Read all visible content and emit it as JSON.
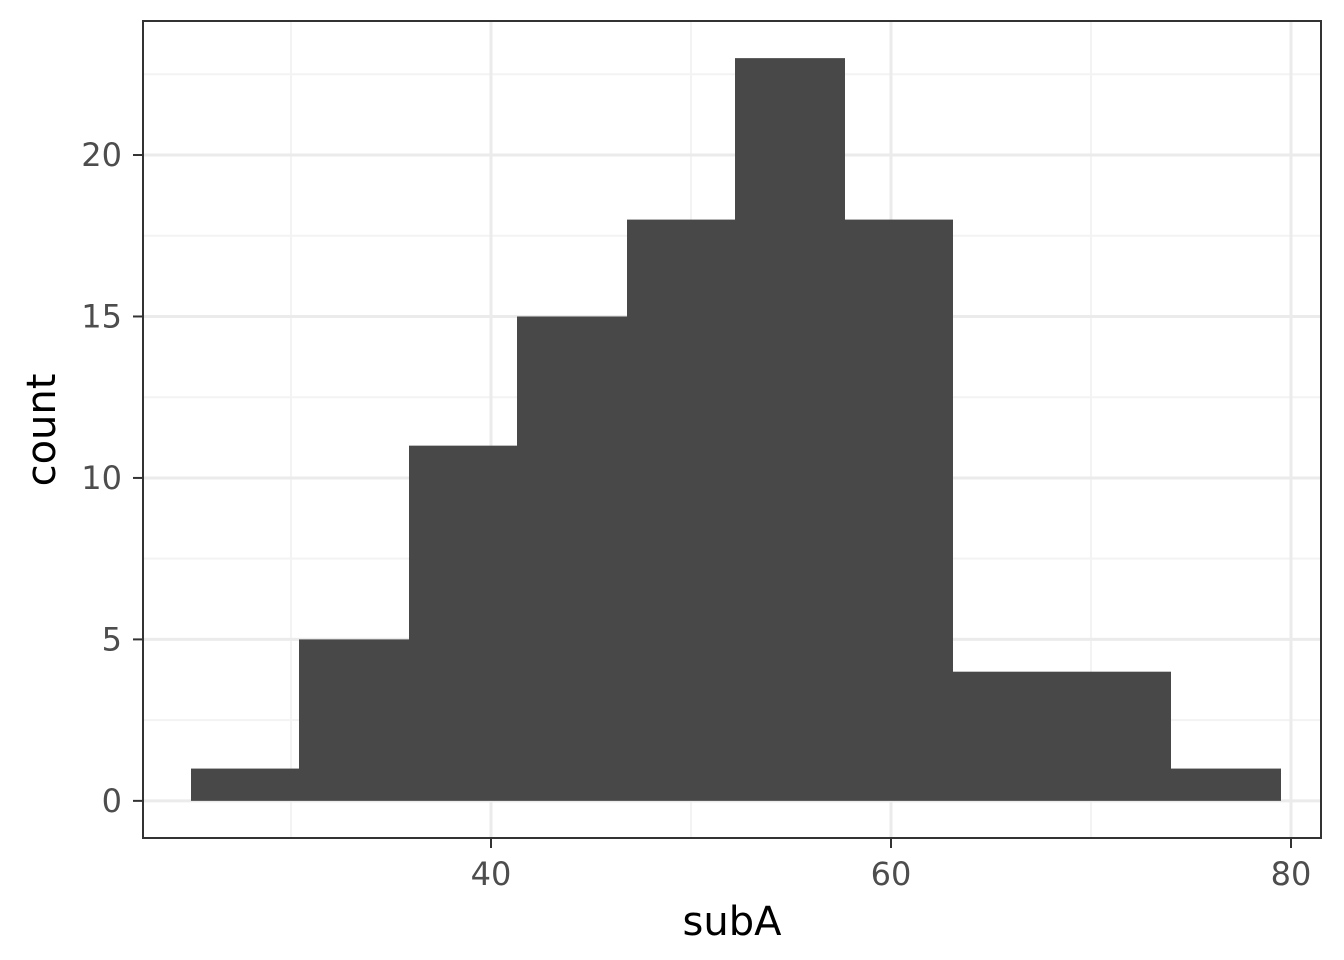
{
  "chart_data": {
    "type": "bar",
    "title": "",
    "xlabel": "subA",
    "ylabel": "count",
    "xlim": [
      22.6,
      81.5
    ],
    "ylim": [
      -1.15,
      24.15
    ],
    "x_ticks": [
      40,
      60,
      80
    ],
    "x_tick_labels": [
      "40",
      "60",
      "80"
    ],
    "y_ticks": [
      0,
      5,
      10,
      15,
      20
    ],
    "y_tick_labels": [
      "0",
      "5",
      "10",
      "15",
      "20"
    ],
    "x_minor_ticks": [
      30,
      50,
      70
    ],
    "y_minor_ticks": [
      2.5,
      7.5,
      12.5,
      17.5,
      22.5
    ],
    "bins": [
      {
        "x0": 25.0,
        "x1": 30.4,
        "count": 1
      },
      {
        "x0": 30.4,
        "x1": 35.9,
        "count": 5
      },
      {
        "x0": 35.9,
        "x1": 41.3,
        "count": 11
      },
      {
        "x0": 41.3,
        "x1": 46.8,
        "count": 15
      },
      {
        "x0": 46.8,
        "x1": 52.2,
        "count": 18
      },
      {
        "x0": 52.2,
        "x1": 57.7,
        "count": 23
      },
      {
        "x0": 57.7,
        "x1": 63.1,
        "count": 18
      },
      {
        "x0": 63.1,
        "x1": 68.6,
        "count": 4
      },
      {
        "x0": 68.6,
        "x1": 74.0,
        "count": 4
      },
      {
        "x0": 74.0,
        "x1": 79.5,
        "count": 1
      }
    ],
    "grid": true,
    "legend": "none",
    "colors": {
      "bar": "#484848",
      "grid_major": "#ebebeb",
      "grid_minor": "#f3f3f3",
      "panel_border": "#333333",
      "tick_label": "#4d4d4d",
      "axis_title": "#000000"
    }
  }
}
